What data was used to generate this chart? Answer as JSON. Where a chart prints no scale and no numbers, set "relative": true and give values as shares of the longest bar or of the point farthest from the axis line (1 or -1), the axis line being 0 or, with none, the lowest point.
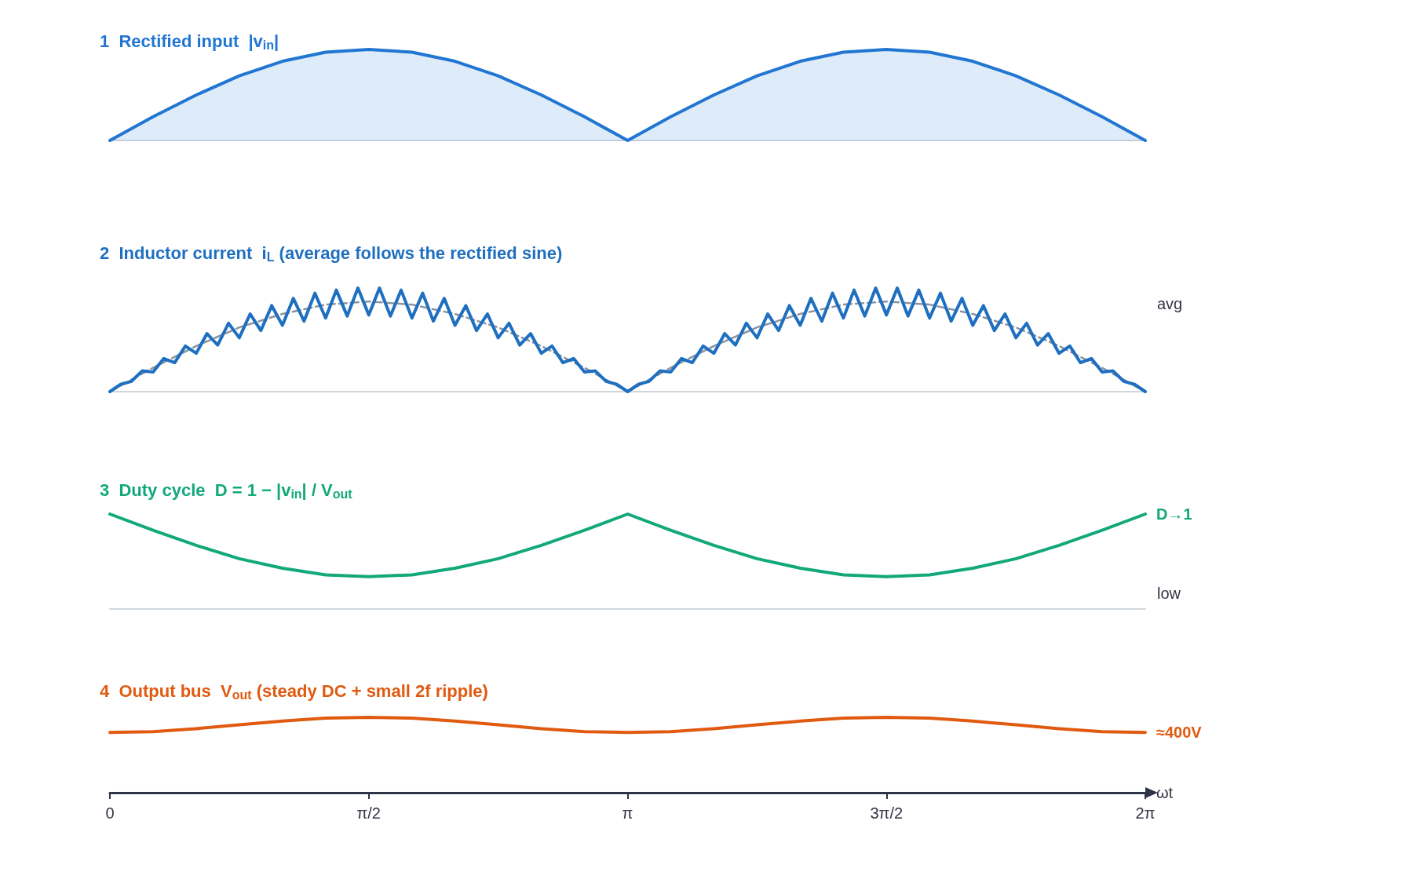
{
  "chart_data": [
    {
      "type": "area",
      "title": "1  Rectified input  |v$_{in}$|",
      "relative": true,
      "marker": "none",
      "tick_labels": false,
      "xlim": [
        0,
        6.2832
      ],
      "x": [
        0,
        0.262,
        0.524,
        0.785,
        1.047,
        1.309,
        1.571,
        1.833,
        2.094,
        2.356,
        2.618,
        2.88,
        3.142,
        3.403,
        3.665,
        3.927,
        4.189,
        4.451,
        4.712,
        4.974,
        5.236,
        5.498,
        5.76,
        6.021,
        6.283
      ],
      "series": [
        {
          "color": "#2176d2",
          "values": [
            0,
            0.26,
            0.5,
            0.71,
            0.87,
            0.97,
            1,
            0.97,
            0.87,
            0.71,
            0.5,
            0.26,
            0,
            0.26,
            0.5,
            0.71,
            0.87,
            0.97,
            1,
            0.97,
            0.87,
            0.71,
            0.5,
            0.26,
            0
          ]
        }
      ]
    },
    {
      "type": "line",
      "title": "2  Inductor current  i$_{L}$ (average follows the rectified sine)",
      "relative": true,
      "marker": "none",
      "tick_labels": false,
      "xlim": [
        0,
        6.2832
      ],
      "x": [
        0,
        0.262,
        0.524,
        0.785,
        1.047,
        1.309,
        1.571,
        1.833,
        2.094,
        2.356,
        2.618,
        2.88,
        3.142,
        3.403,
        3.665,
        3.927,
        4.189,
        4.451,
        4.712,
        4.974,
        5.236,
        5.498,
        5.76,
        6.021,
        6.283
      ],
      "annotations": [
        "avg"
      ],
      "series": [
        {
          "color": "#1f6fc0",
          "x": [
            0,
            0.065,
            0.131,
            0.196,
            0.262,
            0.327,
            0.393,
            0.458,
            0.524,
            0.589,
            0.654,
            0.72,
            0.785,
            0.851,
            0.916,
            0.982,
            1.047,
            1.113,
            1.178,
            1.244,
            1.309,
            1.374,
            1.44,
            1.505,
            1.571,
            1.636,
            1.702,
            1.767,
            1.833,
            1.898,
            1.963,
            2.029,
            2.094,
            2.16,
            2.225,
            2.291,
            2.356,
            2.422,
            2.487,
            2.553,
            2.618,
            2.683,
            2.749,
            2.814,
            2.88,
            2.945,
            3.011,
            3.076,
            3.142,
            3.207,
            3.272,
            3.338,
            3.403,
            3.469,
            3.534,
            3.6,
            3.665,
            3.731,
            3.796,
            3.862,
            3.927,
            3.992,
            4.058,
            4.123,
            4.189,
            4.254,
            4.32,
            4.385,
            4.451,
            4.516,
            4.581,
            4.647,
            4.712,
            4.778,
            4.843,
            4.909,
            4.974,
            5.04,
            5.105,
            5.171,
            5.236,
            5.301,
            5.367,
            5.432,
            5.498,
            5.563,
            5.629,
            5.694,
            5.76,
            5.825,
            5.89,
            5.956,
            6.021,
            6.087,
            6.152,
            6.218,
            6.283
          ],
          "values": [
            0,
            0.07,
            0.1,
            0.2,
            0.19,
            0.32,
            0.28,
            0.44,
            0.37,
            0.56,
            0.45,
            0.66,
            0.52,
            0.75,
            0.59,
            0.83,
            0.64,
            0.9,
            0.68,
            0.95,
            0.71,
            0.98,
            0.73,
            1.0,
            0.74,
            1.0,
            0.73,
            0.98,
            0.71,
            0.95,
            0.68,
            0.9,
            0.64,
            0.83,
            0.59,
            0.75,
            0.52,
            0.66,
            0.45,
            0.56,
            0.37,
            0.44,
            0.28,
            0.32,
            0.19,
            0.2,
            0.1,
            0.07,
            0,
            0.07,
            0.1,
            0.2,
            0.19,
            0.32,
            0.28,
            0.44,
            0.37,
            0.56,
            0.45,
            0.66,
            0.52,
            0.75,
            0.59,
            0.83,
            0.64,
            0.9,
            0.68,
            0.95,
            0.71,
            0.98,
            0.73,
            1.0,
            0.74,
            1.0,
            0.73,
            0.98,
            0.71,
            0.95,
            0.68,
            0.9,
            0.64,
            0.83,
            0.59,
            0.75,
            0.52,
            0.66,
            0.45,
            0.56,
            0.37,
            0.44,
            0.28,
            0.32,
            0.19,
            0.2,
            0.1,
            0.07,
            0
          ]
        },
        {
          "color": "#8a94a0",
          "line_style": "dashed",
          "values": [
            0,
            0.23,
            0.44,
            0.62,
            0.75,
            0.84,
            0.87,
            0.84,
            0.75,
            0.62,
            0.44,
            0.23,
            0,
            0.23,
            0.44,
            0.62,
            0.75,
            0.84,
            0.87,
            0.84,
            0.75,
            0.62,
            0.44,
            0.23,
            0
          ]
        }
      ]
    },
    {
      "type": "line",
      "title": "3  Duty cycle  D = 1 − |v$_{in}$| / V$_{out}$",
      "relative": true,
      "marker": "none",
      "tick_labels": false,
      "xlim": [
        0,
        6.2832
      ],
      "x": [
        0,
        0.262,
        0.524,
        0.785,
        1.047,
        1.309,
        1.571,
        1.833,
        2.094,
        2.356,
        2.618,
        2.88,
        3.142,
        3.403,
        3.665,
        3.927,
        4.189,
        4.451,
        4.712,
        4.974,
        5.236,
        5.498,
        5.76,
        6.021,
        6.283
      ],
      "annotations": [
        {
          "text": "D→1",
          "x": 6.283,
          "y": 1
        },
        "low"
      ],
      "series": [
        {
          "color": "#12a87a",
          "values": [
            1,
            0.83,
            0.67,
            0.53,
            0.43,
            0.36,
            0.34,
            0.36,
            0.43,
            0.53,
            0.67,
            0.83,
            1,
            0.83,
            0.67,
            0.53,
            0.43,
            0.36,
            0.34,
            0.36,
            0.43,
            0.53,
            0.67,
            0.83,
            1
          ]
        }
      ]
    },
    {
      "type": "line",
      "title": "4  Output bus  V$_{out}$ (steady DC + small 2f ripple)",
      "relative": true,
      "marker": "none",
      "tick_labels": "x",
      "xlabel": "ωt",
      "xlim": [
        0,
        6.2832
      ],
      "xticks": [
        {
          "value": 0,
          "label": "0"
        },
        {
          "value": 1.5708,
          "label": "π/2"
        },
        {
          "value": 3.1416,
          "label": "π"
        },
        {
          "value": 4.7124,
          "label": "3π/2"
        },
        {
          "value": 6.2832,
          "label": "2π"
        }
      ],
      "x": [
        0,
        0.262,
        0.524,
        0.785,
        1.047,
        1.309,
        1.571,
        1.833,
        2.094,
        2.356,
        2.618,
        2.88,
        3.142,
        3.403,
        3.665,
        3.927,
        4.189,
        4.451,
        4.712,
        4.974,
        5.236,
        5.498,
        5.76,
        6.021,
        6.283
      ],
      "annotations": [
        {
          "text": "≈400V",
          "x": 6.283,
          "y": 0.8
        }
      ],
      "series": [
        {
          "color": "#e05a10",
          "values": [
            0.8,
            0.81,
            0.85,
            0.9,
            0.95,
            0.99,
            1,
            0.99,
            0.95,
            0.9,
            0.85,
            0.81,
            0.8,
            0.81,
            0.85,
            0.9,
            0.95,
            0.99,
            1,
            0.99,
            0.95,
            0.9,
            0.85,
            0.81,
            0.8
          ]
        }
      ]
    }
  ]
}
